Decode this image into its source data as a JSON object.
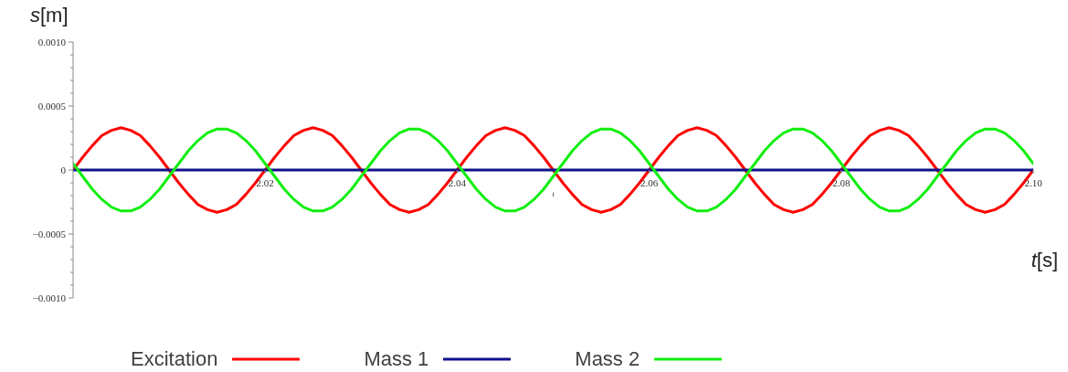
{
  "chart_data": {
    "type": "line",
    "xlabel": "t[s]",
    "ylabel": "s[m]",
    "annotations": [
      "t"
    ],
    "x": [
      2,
      2.001,
      2.002,
      2.003,
      2.004,
      2.005,
      2.006,
      2.007,
      2.008,
      2.009,
      2.01,
      2.011,
      2.012,
      2.013,
      2.014,
      2.015,
      2.016,
      2.017,
      2.018,
      2.019,
      2.02,
      2.021,
      2.022,
      2.023,
      2.024,
      2.025,
      2.026,
      2.027,
      2.028,
      2.029,
      2.03,
      2.031,
      2.032,
      2.033,
      2.034,
      2.035,
      2.036,
      2.037,
      2.038,
      2.039,
      2.04,
      2.041,
      2.042,
      2.043,
      2.044,
      2.045,
      2.046,
      2.047,
      2.048,
      2.049,
      2.05,
      2.051,
      2.052,
      2.053,
      2.054,
      2.055,
      2.056,
      2.057,
      2.058,
      2.059,
      2.06,
      2.061,
      2.062,
      2.063,
      2.064,
      2.065,
      2.066,
      2.067,
      2.068,
      2.069,
      2.07,
      2.071,
      2.072,
      2.073,
      2.074,
      2.075,
      2.076,
      2.077,
      2.078,
      2.079,
      2.08,
      2.081,
      2.082,
      2.083,
      2.084,
      2.085,
      2.086,
      2.087,
      2.088,
      2.089,
      2.09,
      2.091,
      2.092,
      2.093,
      2.094,
      2.095,
      2.096,
      2.097,
      2.098,
      2.099,
      2.1
    ],
    "series": [
      {
        "name": "Excitation",
        "color": "#ff0000",
        "values": [
          0,
          0.0001,
          0.00019,
          0.00027,
          0.00031,
          0.00033,
          0.00031,
          0.00027,
          0.00019,
          0.0001,
          0,
          -0.0001,
          -0.00019,
          -0.00027,
          -0.00031,
          -0.00033,
          -0.00031,
          -0.00027,
          -0.00019,
          -0.0001,
          0,
          0.0001,
          0.00019,
          0.00027,
          0.00031,
          0.00033,
          0.00031,
          0.00027,
          0.00019,
          0.0001,
          0,
          -0.0001,
          -0.00019,
          -0.00027,
          -0.00031,
          -0.00033,
          -0.00031,
          -0.00027,
          -0.00019,
          -0.0001,
          0,
          0.0001,
          0.00019,
          0.00027,
          0.00031,
          0.00033,
          0.00031,
          0.00027,
          0.00019,
          0.0001,
          0,
          -0.0001,
          -0.00019,
          -0.00027,
          -0.00031,
          -0.00033,
          -0.00031,
          -0.00027,
          -0.00019,
          -0.0001,
          0,
          0.0001,
          0.00019,
          0.00027,
          0.00031,
          0.00033,
          0.00031,
          0.00027,
          0.00019,
          0.0001,
          0,
          -0.0001,
          -0.00019,
          -0.00027,
          -0.00031,
          -0.00033,
          -0.00031,
          -0.00027,
          -0.00019,
          -0.0001,
          0,
          0.0001,
          0.00019,
          0.00027,
          0.00031,
          0.00033,
          0.00031,
          0.00027,
          0.00019,
          0.0001,
          0,
          -0.0001,
          -0.00019,
          -0.00027,
          -0.00031,
          -0.00033,
          -0.00031,
          -0.00027,
          -0.00019,
          -0.0001,
          0
        ]
      },
      {
        "name": "Mass 1",
        "color": "#10108c",
        "values": [
          0,
          0,
          0,
          0,
          0,
          0,
          0,
          0,
          0,
          0,
          0,
          0,
          0,
          0,
          0,
          0,
          0,
          0,
          0,
          0,
          0,
          0,
          0,
          0,
          0,
          0,
          0,
          0,
          0,
          0,
          0,
          0,
          0,
          0,
          0,
          0,
          0,
          0,
          0,
          0,
          0,
          0,
          0,
          0,
          0,
          0,
          0,
          0,
          0,
          0,
          0,
          0,
          0,
          0,
          0,
          0,
          0,
          0,
          0,
          0,
          0,
          0,
          0,
          0,
          0,
          0,
          0,
          0,
          0,
          0,
          0,
          0,
          0,
          0,
          0,
          0,
          0,
          0,
          0,
          0,
          0,
          0,
          0,
          0,
          0,
          0,
          0,
          0,
          0,
          0,
          0,
          0,
          0,
          0,
          0,
          0,
          0,
          0,
          0,
          0,
          0
        ]
      },
      {
        "name": "Mass 2",
        "color": "#11ee11",
        "values": [
          5e-05,
          -5e-05,
          -0.00015,
          -0.00023,
          -0.00029,
          -0.00032,
          -0.00032,
          -0.00029,
          -0.00023,
          -0.00015,
          -5e-05,
          5e-05,
          0.00015,
          0.00023,
          0.00029,
          0.00032,
          0.00032,
          0.00029,
          0.00023,
          0.00015,
          5e-05,
          -5e-05,
          -0.00015,
          -0.00023,
          -0.00029,
          -0.00032,
          -0.00032,
          -0.00029,
          -0.00023,
          -0.00015,
          -5e-05,
          5e-05,
          0.00015,
          0.00023,
          0.00029,
          0.00032,
          0.00032,
          0.00029,
          0.00023,
          0.00015,
          5e-05,
          -5e-05,
          -0.00015,
          -0.00023,
          -0.00029,
          -0.00032,
          -0.00032,
          -0.00029,
          -0.00023,
          -0.00015,
          -5e-05,
          5e-05,
          0.00015,
          0.00023,
          0.00029,
          0.00032,
          0.00032,
          0.00029,
          0.00023,
          0.00015,
          5e-05,
          -5e-05,
          -0.00015,
          -0.00023,
          -0.00029,
          -0.00032,
          -0.00032,
          -0.00029,
          -0.00023,
          -0.00015,
          -5e-05,
          5e-05,
          0.00015,
          0.00023,
          0.00029,
          0.00032,
          0.00032,
          0.00029,
          0.00023,
          0.00015,
          5e-05,
          -5e-05,
          -0.00015,
          -0.00023,
          -0.00029,
          -0.00032,
          -0.00032,
          -0.00029,
          -0.00023,
          -0.00015,
          -5e-05,
          5e-05,
          0.00015,
          0.00023,
          0.00029,
          0.00032,
          0.00032,
          0.00029,
          0.00023,
          0.00015,
          5e-05
        ]
      }
    ],
    "xlim": [
      2,
      2.1
    ],
    "xticks": [
      2.02,
      2.04,
      2.06,
      2.08,
      {
        "value": 2.1,
        "label": "2.10"
      }
    ],
    "ylim": [
      -0.001,
      0.001
    ],
    "yticks": [
      {
        "value": 0.001,
        "label": "0.0010"
      },
      {
        "value": 0.0009,
        "label": null
      },
      {
        "value": 0.0008,
        "label": null
      },
      {
        "value": 0.0007,
        "label": null
      },
      {
        "value": 0.0006,
        "label": null
      },
      0.0005,
      {
        "value": 0.0004,
        "label": null
      },
      {
        "value": 0.0003,
        "label": null
      },
      {
        "value": 0.0002,
        "label": null
      },
      {
        "value": 0.0001,
        "label": null
      },
      0,
      {
        "value": -0.0001,
        "label": null
      },
      {
        "value": -0.0002,
        "label": null
      },
      {
        "value": -0.0003,
        "label": null
      },
      {
        "value": -0.0004,
        "label": null
      },
      {
        "value": -0.0005,
        "label": "−0.0005"
      },
      {
        "value": -0.0006,
        "label": null
      },
      {
        "value": -0.0007,
        "label": null
      },
      {
        "value": -0.0008,
        "label": null
      },
      {
        "value": -0.0009,
        "label": null
      },
      {
        "value": -0.001,
        "label": "−0.0010"
      }
    ],
    "legend": "bottom",
    "marker": "none",
    "line_style": "solid"
  }
}
